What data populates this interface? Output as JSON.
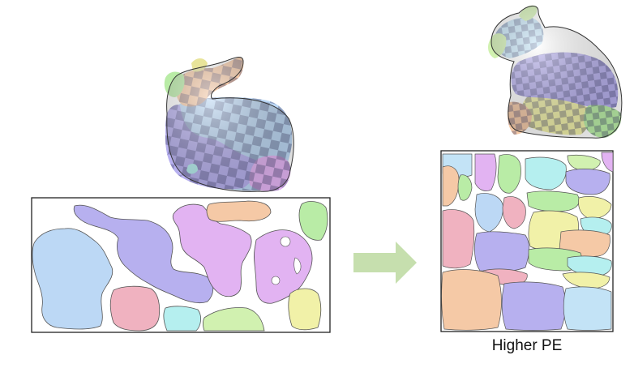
{
  "figure": {
    "caption_right": "Higher PE",
    "arrow_color": "#c6dfae",
    "checker_dark": "#5a5a88",
    "patch_colors": {
      "blue": "#bcd8f5",
      "lavender": "#b7b0ef",
      "violet": "#e2b3f2",
      "peach": "#f5c9a6",
      "green": "#b9eca6",
      "pink": "#f0b2c0",
      "cyan": "#b5efef",
      "yellow": "#f1f1a8",
      "lightgreen": "#d1f1b0",
      "skyblue": "#c3e3f6"
    }
  }
}
